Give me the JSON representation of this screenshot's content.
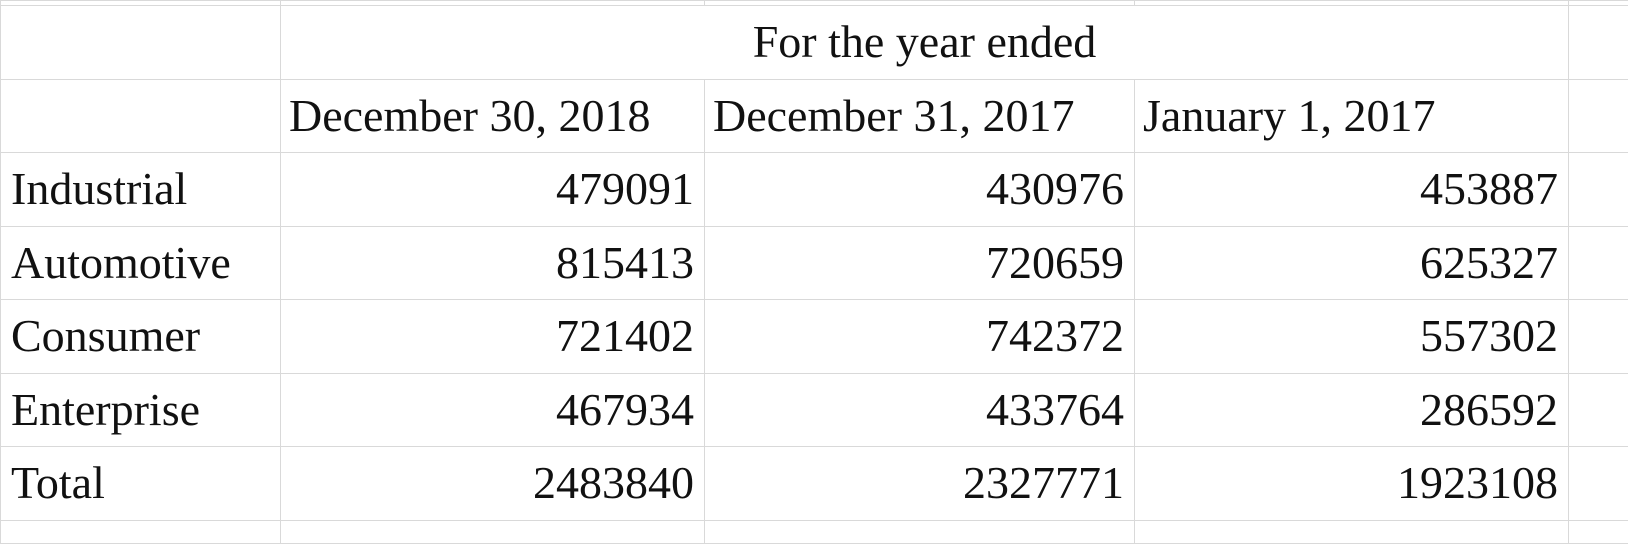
{
  "table": {
    "group_header": "For the year ended",
    "columns": [
      "December 30, 2018",
      "December 31, 2017",
      "January 1, 2017"
    ],
    "rows": [
      {
        "label": "Industrial",
        "values": [
          "479091",
          "430976",
          "453887"
        ]
      },
      {
        "label": "Automotive",
        "values": [
          "815413",
          "720659",
          "625327"
        ]
      },
      {
        "label": "Consumer",
        "values": [
          "721402",
          "742372",
          "557302"
        ]
      },
      {
        "label": "Enterprise",
        "values": [
          "467934",
          "433764",
          "286592"
        ]
      },
      {
        "label": "Total",
        "values": [
          "2483840",
          "2327771",
          "1923108"
        ]
      }
    ]
  }
}
